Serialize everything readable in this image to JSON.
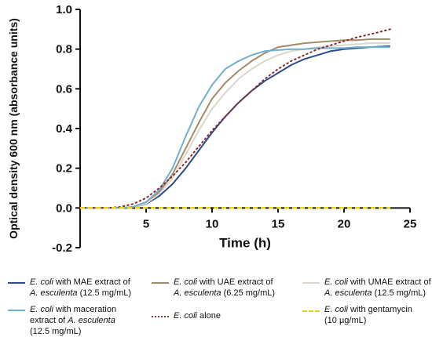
{
  "chart_data": {
    "type": "line",
    "title": "",
    "xlabel": "Time (h)",
    "ylabel": "Optical density 600 nm (absorbance units)",
    "xlim": [
      0,
      25
    ],
    "ylim": [
      -0.2,
      1.0
    ],
    "x_ticks": [
      "5",
      "10",
      "15",
      "20",
      "25"
    ],
    "y_ticks": [
      "-0.2",
      "0.0",
      "0.2",
      "0.4",
      "0.6",
      "0.8",
      "1.0"
    ],
    "grid": false,
    "legend_position": "bottom",
    "series": [
      {
        "name": "E. coli with MAE extract of A. esculenta (12.5 mg/mL)",
        "color": "#2b4c8c",
        "dash": "solid",
        "x": [
          0,
          3,
          4,
          5,
          6,
          7,
          8,
          9,
          10,
          11,
          12,
          13,
          14,
          15,
          16,
          17,
          18,
          19,
          20,
          21,
          22,
          23.5
        ],
        "y": [
          0,
          0,
          0.005,
          0.02,
          0.06,
          0.12,
          0.2,
          0.29,
          0.38,
          0.46,
          0.53,
          0.59,
          0.64,
          0.68,
          0.72,
          0.75,
          0.77,
          0.79,
          0.8,
          0.805,
          0.81,
          0.815
        ]
      },
      {
        "name": "E. coli with UAE extract of A. esculenta (6.25 mg/mL)",
        "color": "#a48a68",
        "dash": "solid",
        "x": [
          0,
          3,
          4,
          5,
          6,
          7,
          8,
          9,
          10,
          11,
          12,
          13,
          14,
          15,
          16,
          17,
          18,
          19,
          20,
          21,
          22,
          23.5
        ],
        "y": [
          0,
          0,
          0.005,
          0.025,
          0.08,
          0.17,
          0.3,
          0.43,
          0.55,
          0.63,
          0.69,
          0.74,
          0.78,
          0.81,
          0.82,
          0.83,
          0.835,
          0.84,
          0.845,
          0.845,
          0.85,
          0.85
        ]
      },
      {
        "name": "E. coli with UMAE extract of A. esculenta (12.5 mg/mL)",
        "color": "#dcd6cb",
        "dash": "solid",
        "x": [
          0,
          3,
          4,
          5,
          6,
          7,
          8,
          9,
          10,
          11,
          12,
          13,
          14,
          15,
          16,
          17,
          18,
          19,
          20,
          21,
          22,
          23.5
        ],
        "y": [
          0,
          0,
          0.005,
          0.022,
          0.07,
          0.15,
          0.27,
          0.39,
          0.5,
          0.58,
          0.65,
          0.7,
          0.74,
          0.77,
          0.79,
          0.8,
          0.81,
          0.815,
          0.82,
          0.825,
          0.83,
          0.83
        ]
      },
      {
        "name": "E. coli with maceration extract of A. esculenta (12.5 mg/mL)",
        "color": "#6fb0cf",
        "dash": "solid",
        "x": [
          0,
          3,
          4,
          5,
          6,
          7,
          8,
          9,
          10,
          11,
          12,
          13,
          14,
          15,
          16,
          17,
          18,
          19,
          20,
          21,
          22,
          23.5
        ],
        "y": [
          0,
          0,
          0.005,
          0.03,
          0.09,
          0.2,
          0.36,
          0.51,
          0.62,
          0.7,
          0.74,
          0.77,
          0.79,
          0.795,
          0.8,
          0.8,
          0.805,
          0.805,
          0.805,
          0.81,
          0.81,
          0.81
        ]
      },
      {
        "name": "E. coli alone",
        "color": "#8b2b2b",
        "dash": "dotted",
        "x": [
          0,
          2,
          3,
          4,
          5,
          6,
          7,
          8,
          9,
          10,
          11,
          12,
          13,
          14,
          15,
          16,
          17,
          18,
          19,
          20,
          21,
          22,
          23.5
        ],
        "y": [
          0,
          0,
          0.005,
          0.02,
          0.05,
          0.1,
          0.16,
          0.23,
          0.31,
          0.39,
          0.46,
          0.53,
          0.59,
          0.65,
          0.7,
          0.74,
          0.77,
          0.8,
          0.82,
          0.84,
          0.86,
          0.875,
          0.9
        ]
      },
      {
        "name": "E. coli with gentamycin (10 µg/mL)",
        "color": "#e6d21c",
        "dash": "dashed",
        "x": [
          0,
          23.5
        ],
        "y": [
          0,
          0
        ]
      }
    ]
  },
  "legend": {
    "items": [
      {
        "sp": "E. coli",
        "pre": " with MAE extract of",
        "sp2": "A. esculenta",
        "post": " (12.5 mg/mL)"
      },
      {
        "sp": "E. coli",
        "pre": " with UAE extract of",
        "sp2": "A. esculenta",
        "post": " (6.25 mg/mL)"
      },
      {
        "sp": "E. coli",
        "pre": " with UMAE extract of",
        "sp2": "A. esculenta",
        "post": " (12.5 mg/mL)"
      },
      {
        "sp": "E. coli",
        "pre": " with maceration",
        "mid": "extract of ",
        "sp2": "A. esculenta",
        "post": "(12.5 mg/mL)"
      },
      {
        "sp": "E. coli",
        "pre": " alone",
        "sp2": "",
        "post": ""
      },
      {
        "sp": "E. coli",
        "pre": " with gentamycin",
        "sp2": "",
        "post": "(10 µg/mL)"
      }
    ]
  }
}
